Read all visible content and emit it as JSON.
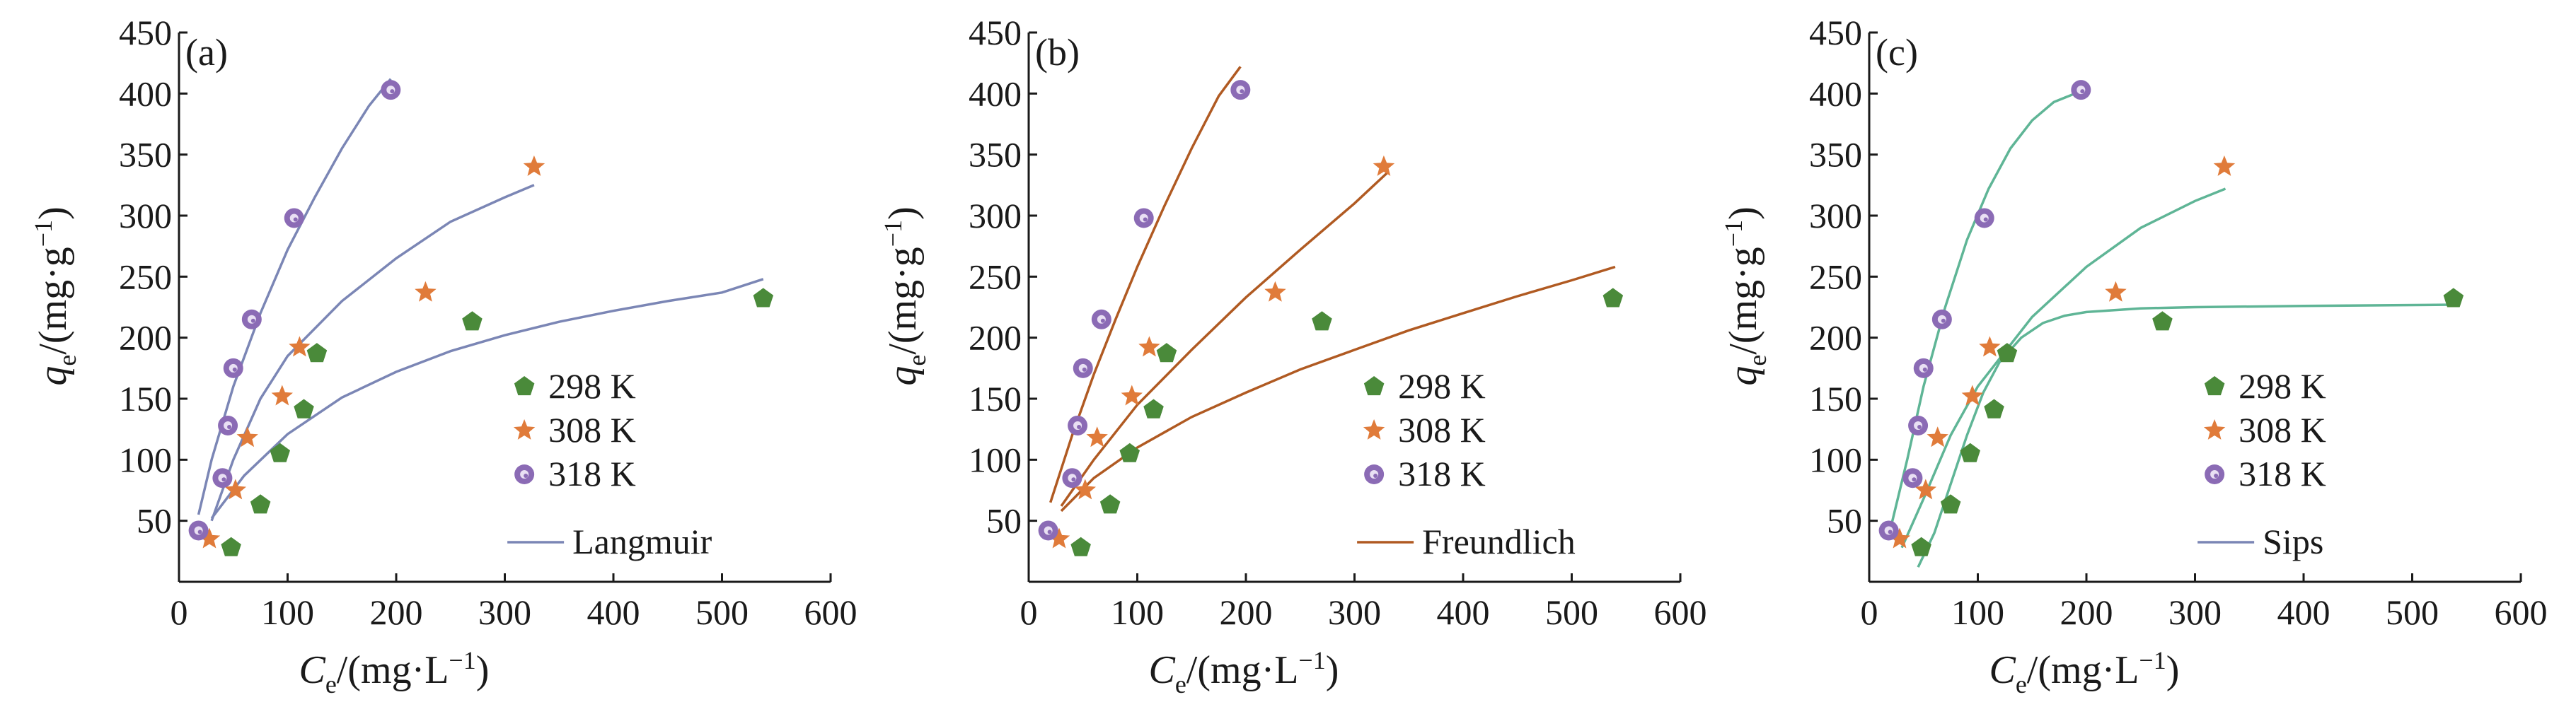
{
  "figure": {
    "panels": [
      "panel_a",
      "panel_b",
      "panel_c"
    ]
  },
  "chart_data": [
    {
      "id": "panel_a",
      "type": "scatter",
      "panel_label": "(a)",
      "xlabel": {
        "main": "C",
        "sub": "e",
        "unit": "/(mg·L",
        "sup": "−1",
        "close": ")"
      },
      "ylabel": {
        "main": "q",
        "sub": "e",
        "unit": "/(mg·g",
        "sup": "−1",
        "close": ")"
      },
      "xlim": [
        0,
        600
      ],
      "ylim": [
        0,
        450
      ],
      "xticks": [
        0,
        100,
        200,
        300,
        400,
        500,
        600
      ],
      "yticks": [
        50,
        100,
        150,
        200,
        250,
        300,
        350,
        400,
        450
      ],
      "legend_position": "bottom-right",
      "fit_label": "Langmuir",
      "fit_color": "#7b86b5",
      "series": [
        {
          "name": "298 K",
          "marker": "pentagon",
          "color": "#4a8a3a",
          "x": [
            48,
            75,
            93,
            115,
            127,
            270,
            538
          ],
          "y": [
            28,
            63,
            105,
            141,
            187,
            213,
            232
          ],
          "fit": {
            "x": [
              30,
              60,
              100,
              150,
              200,
              250,
              300,
              350,
              400,
              450,
              500,
              538
            ],
            "y": [
              52,
              87,
              121,
              151,
              172,
              189,
              202,
              213,
              222,
              230,
              237,
              248
            ]
          }
        },
        {
          "name": "308 K",
          "marker": "star",
          "color": "#e07b3a",
          "x": [
            28,
            52,
            63,
            95,
            111,
            227,
            327
          ],
          "y": [
            35,
            75,
            118,
            152,
            192,
            237,
            340
          ],
          "fit": {
            "x": [
              30,
              50,
              75,
              100,
              150,
              200,
              250,
              300,
              327
            ],
            "y": [
              50,
              100,
              150,
              185,
              230,
              265,
              295,
              315,
              325
            ]
          }
        },
        {
          "name": "318 K",
          "marker": "circle",
          "color": "#8b6bb5",
          "x": [
            18,
            40,
            45,
            50,
            67,
            106,
            195
          ],
          "y": [
            42,
            85,
            128,
            175,
            215,
            298,
            403
          ],
          "fit": {
            "x": [
              18,
              30,
              50,
              75,
              100,
              125,
              150,
              175,
              195
            ],
            "y": [
              55,
              100,
              160,
              220,
              272,
              315,
              355,
              390,
              412
            ]
          }
        }
      ]
    },
    {
      "id": "panel_b",
      "type": "scatter",
      "panel_label": "(b)",
      "xlabel": {
        "main": "C",
        "sub": "e",
        "unit": "/(mg·L",
        "sup": "−1",
        "close": ")"
      },
      "ylabel": {
        "main": "q",
        "sub": "e",
        "unit": "/(mg·g",
        "sup": "−1",
        "close": ")"
      },
      "xlim": [
        0,
        600
      ],
      "ylim": [
        0,
        450
      ],
      "xticks": [
        0,
        100,
        200,
        300,
        400,
        500,
        600
      ],
      "yticks": [
        50,
        100,
        150,
        200,
        250,
        300,
        350,
        400,
        450
      ],
      "legend_position": "bottom-right",
      "fit_label": "Freundlich",
      "fit_color": "#b05a22",
      "series": [
        {
          "name": "298 K",
          "marker": "pentagon",
          "color": "#4a8a3a",
          "x": [
            48,
            75,
            93,
            115,
            127,
            270,
            538
          ],
          "y": [
            28,
            63,
            105,
            141,
            187,
            213,
            232
          ],
          "fit": {
            "x": [
              30,
              60,
              100,
              150,
              200,
              250,
              300,
              350,
              400,
              450,
              500,
              540
            ],
            "y": [
              58,
              85,
              110,
              135,
              155,
              174,
              190,
              206,
              220,
              234,
              247,
              258
            ]
          }
        },
        {
          "name": "308 K",
          "marker": "star",
          "color": "#e07b3a",
          "x": [
            28,
            52,
            63,
            95,
            111,
            227,
            327
          ],
          "y": [
            35,
            75,
            118,
            152,
            192,
            237,
            340
          ],
          "fit": {
            "x": [
              30,
              60,
              100,
              150,
              200,
              250,
              300,
              330
            ],
            "y": [
              62,
              100,
              145,
              190,
              233,
              272,
              310,
              335
            ]
          }
        },
        {
          "name": "318 K",
          "marker": "circle",
          "color": "#8b6bb5",
          "x": [
            18,
            40,
            45,
            50,
            67,
            106,
            195
          ],
          "y": [
            42,
            85,
            128,
            175,
            215,
            298,
            403
          ],
          "fit": {
            "x": [
              20,
              40,
              60,
              80,
              100,
              125,
              150,
              175,
              195
            ],
            "y": [
              65,
              120,
              170,
              215,
              258,
              308,
              355,
              398,
              422
            ]
          }
        }
      ]
    },
    {
      "id": "panel_c",
      "type": "scatter",
      "panel_label": "(c)",
      "xlabel": {
        "main": "C",
        "sub": "e",
        "unit": "/(mg·L",
        "sup": "−1",
        "close": ")"
      },
      "ylabel": {
        "main": "q",
        "sub": "e",
        "unit": "/(mg·g",
        "sup": "−1",
        "close": ")"
      },
      "xlim": [
        0,
        600
      ],
      "ylim": [
        0,
        450
      ],
      "xticks": [
        0,
        100,
        200,
        300,
        400,
        500,
        600
      ],
      "yticks": [
        50,
        100,
        150,
        200,
        250,
        300,
        350,
        400,
        450
      ],
      "legend_position": "bottom-right",
      "fit_label": "Sips",
      "fit_color": "#5fb596",
      "legend_line_color": "#7b86b5",
      "series": [
        {
          "name": "298 K",
          "marker": "pentagon",
          "color": "#4a8a3a",
          "x": [
            48,
            75,
            93,
            115,
            127,
            270,
            538
          ],
          "y": [
            28,
            63,
            105,
            141,
            187,
            213,
            232
          ],
          "fit": {
            "x": [
              45,
              60,
              75,
              90,
              105,
              120,
              140,
              160,
              180,
              200,
              250,
              300,
              400,
              538
            ],
            "y": [
              12,
              40,
              80,
              120,
              155,
              180,
              200,
              212,
              218,
              221,
              224,
              225,
              226,
              227
            ]
          }
        },
        {
          "name": "308 K",
          "marker": "star",
          "color": "#e07b3a",
          "x": [
            28,
            52,
            63,
            95,
            111,
            227,
            327
          ],
          "y": [
            35,
            75,
            118,
            152,
            192,
            237,
            340
          ],
          "fit": {
            "x": [
              30,
              50,
              75,
              100,
              150,
              200,
              250,
              300,
              328
            ],
            "y": [
              28,
              68,
              120,
              160,
              217,
              258,
              290,
              312,
              322
            ]
          }
        },
        {
          "name": "318 K",
          "marker": "circle",
          "color": "#8b6bb5",
          "x": [
            18,
            40,
            45,
            50,
            67,
            106,
            195
          ],
          "y": [
            42,
            85,
            128,
            175,
            215,
            298,
            403
          ],
          "fit": {
            "x": [
              20,
              35,
              50,
              70,
              90,
              110,
              130,
              150,
              170,
              195
            ],
            "y": [
              45,
              100,
              160,
              225,
              280,
              322,
              355,
              378,
              393,
              402
            ]
          }
        }
      ]
    }
  ]
}
